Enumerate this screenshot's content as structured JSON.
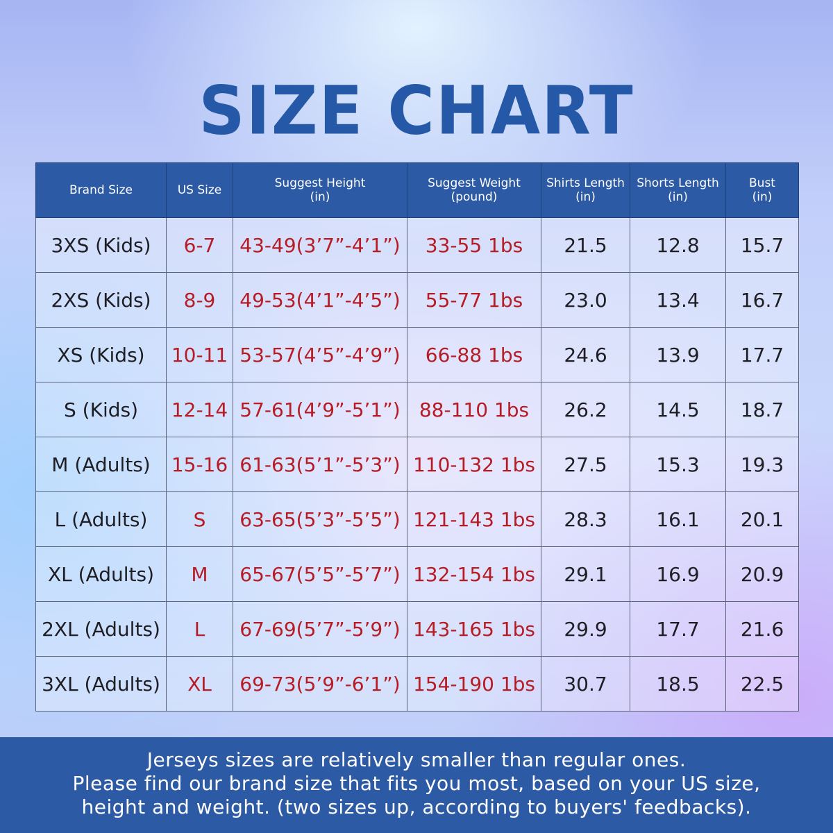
{
  "title": "SIZE CHART",
  "colors": {
    "header_bg": "#2d5aa4",
    "title": "#2558a6",
    "red_text": "#b71c24",
    "dark_text": "#1e1e24"
  },
  "headers": [
    {
      "l1": "Brand Size",
      "l2": ""
    },
    {
      "l1": "US Size",
      "l2": ""
    },
    {
      "l1": "Suggest Height",
      "l2": "(in)"
    },
    {
      "l1": "Suggest Weight",
      "l2": "(pound)"
    },
    {
      "l1": "Shirts Length",
      "l2": "(in)"
    },
    {
      "l1": "Shorts Length",
      "l2": "(in)"
    },
    {
      "l1": "Bust",
      "l2": "(in)"
    }
  ],
  "rows": [
    [
      "3XS (Kids)",
      "6-7",
      "43-49(3’7”-4’1”)",
      "33-55 1bs",
      "21.5",
      "12.8",
      "15.7"
    ],
    [
      "2XS (Kids)",
      "8-9",
      "49-53(4’1”-4’5”)",
      "55-77 1bs",
      "23.0",
      "13.4",
      "16.7"
    ],
    [
      "XS (Kids)",
      "10-11",
      "53-57(4’5”-4’9”)",
      "66-88 1bs",
      "24.6",
      "13.9",
      "17.7"
    ],
    [
      "S (Kids)",
      "12-14",
      "57-61(4’9”-5’1”)",
      "88-110 1bs",
      "26.2",
      "14.5",
      "18.7"
    ],
    [
      "M (Adults)",
      "15-16",
      "61-63(5’1”-5’3”)",
      "110-132 1bs",
      "27.5",
      "15.3",
      "19.3"
    ],
    [
      "L (Adults)",
      "S",
      "63-65(5’3”-5’5”)",
      "121-143 1bs",
      "28.3",
      "16.1",
      "20.1"
    ],
    [
      "XL (Adults)",
      "M",
      "65-67(5’5”-5’7”)",
      "132-154 1bs",
      "29.1",
      "16.9",
      "20.9"
    ],
    [
      "2XL (Adults)",
      "L",
      "67-69(5’7”-5’9”)",
      "143-165 1bs",
      "29.9",
      "17.7",
      "21.6"
    ],
    [
      "3XL (Adults)",
      "XL",
      "69-73(5’9”-6’1”)",
      "154-190 1bs",
      "30.7",
      "18.5",
      "22.5"
    ]
  ],
  "footer": {
    "line1": "Jerseys sizes are relatively smaller than regular ones.",
    "line2": "Please find our brand size that fits you most, based on your US size,",
    "line3": "height and weight. (two sizes up, according to buyers' feedbacks)."
  }
}
